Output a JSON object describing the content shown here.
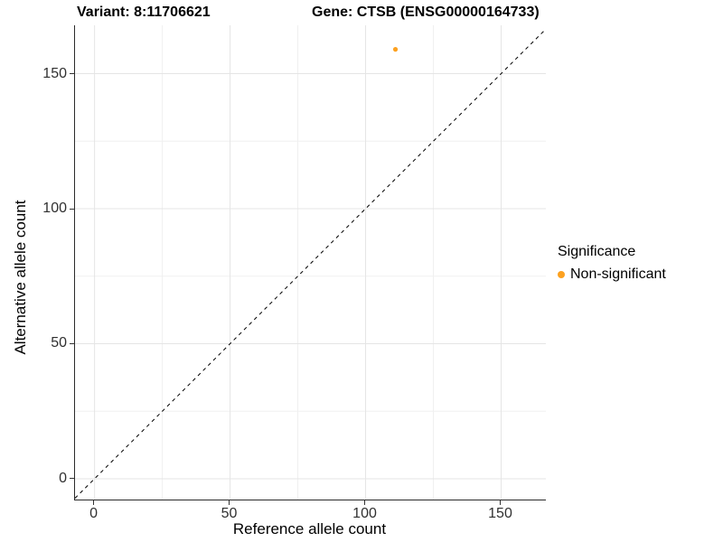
{
  "chart_data": {
    "type": "scatter",
    "title_left": "Variant: 8:11706621",
    "title_right": "Gene: CTSB (ENSG00000164733)",
    "xlabel": "Reference allele count",
    "ylabel": "Alternative allele count",
    "x_ticks": [
      0,
      50,
      100,
      150
    ],
    "y_ticks": [
      0,
      50,
      100,
      150
    ],
    "x_minor_ticks": [
      25,
      75,
      125
    ],
    "y_minor_ticks": [
      25,
      75,
      125
    ],
    "xlim": [
      -7.2,
      166.5
    ],
    "ylim": [
      -7.7,
      167.9
    ],
    "grid": {
      "major_color": "#e5e5e5",
      "minor_color": "#f0f0f0"
    },
    "axis_color": "#2b2b2b",
    "tick_label_color": "#303030",
    "reference_line": {
      "type": "identity",
      "style": "dashed",
      "color": "#000000"
    },
    "series": [
      {
        "name": "Non-significant",
        "color": "#fca120",
        "point_radius": 2.6,
        "points": [
          {
            "x": 111,
            "y": 159
          }
        ]
      }
    ],
    "legend": {
      "title": "Significance",
      "position": "right",
      "entries": [
        {
          "label": "Non-significant",
          "color": "#fca120"
        }
      ]
    }
  }
}
